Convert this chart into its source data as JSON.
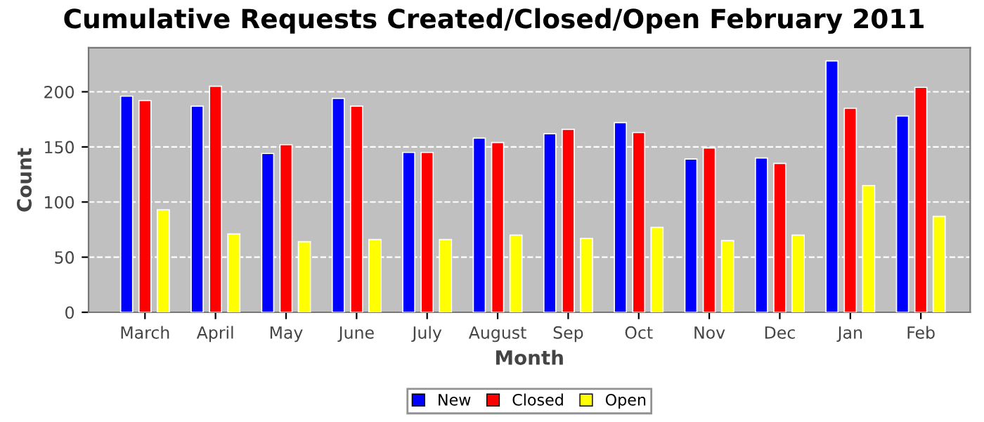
{
  "chart_data": {
    "type": "bar",
    "title": "Cumulative Requests Created/Closed/Open February 2011",
    "xlabel": "Month",
    "ylabel": "Count",
    "categories": [
      "March",
      "April",
      "May",
      "June",
      "July",
      "August",
      "Sep",
      "Oct",
      "Nov",
      "Dec",
      "Jan",
      "Feb"
    ],
    "series": [
      {
        "name": "New",
        "color": "#0000ff",
        "values": [
          196,
          187,
          144,
          194,
          145,
          158,
          162,
          172,
          139,
          140,
          228,
          178
        ]
      },
      {
        "name": "Closed",
        "color": "#ff0000",
        "values": [
          192,
          205,
          152,
          187,
          145,
          154,
          166,
          163,
          149,
          135,
          185,
          204
        ]
      },
      {
        "name": "Open",
        "color": "#ffff00",
        "values": [
          93,
          71,
          64,
          66,
          66,
          70,
          67,
          77,
          65,
          70,
          115,
          87
        ]
      }
    ],
    "ylim": [
      0,
      240
    ],
    "yticks": [
      0,
      50,
      100,
      150,
      200
    ],
    "grid": "y",
    "legend": "bottom"
  }
}
